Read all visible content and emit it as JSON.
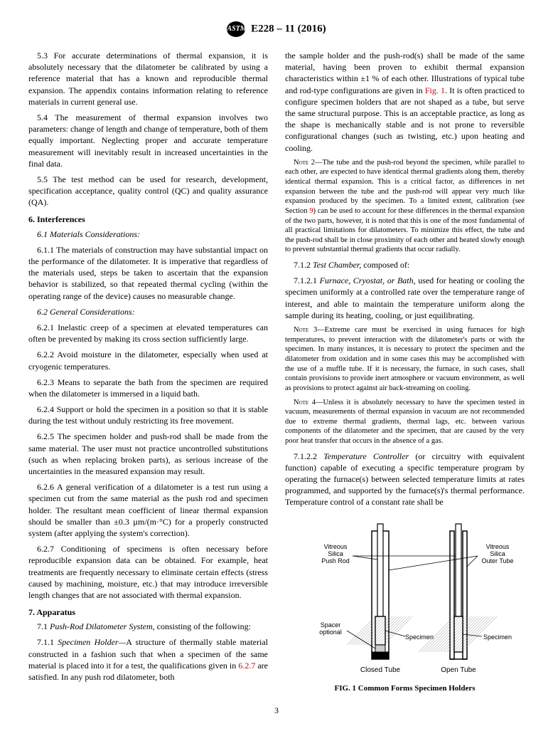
{
  "header": {
    "logo_text": "ASTM",
    "designation": "E228 – 11 (2016)"
  },
  "left": {
    "p53": "5.3 For accurate determinations of thermal expansion, it is absolutely necessary that the dilatometer be calibrated by using a reference material that has a known and reproducible thermal expansion. The appendix contains information relating to reference materials in current general use.",
    "p54": "5.4 The measurement of thermal expansion involves two parameters: change of length and change of temperature, both of them equally important. Neglecting proper and accurate temperature measurement will inevitably result in increased uncertainties in the final data.",
    "p55": "5.5 The test method can be used for research, development, specification acceptance, quality control (QC) and quality assurance (QA).",
    "s6": "6. Interferences",
    "s61": "6.1 Materials Considerations:",
    "p611": "6.1.1 The materials of construction may have substantial impact on the performance of the dilatometer. It is imperative that regardless of the materials used, steps be taken to ascertain that the expansion behavior is stabilized, so that repeated thermal cycling (within the operating range of the device) causes no measurable change.",
    "s62": "6.2 General Considerations:",
    "p621": "6.2.1 Inelastic creep of a specimen at elevated temperatures can often be prevented by making its cross section sufficiently large.",
    "p622": "6.2.2 Avoid moisture in the dilatometer, especially when used at cryogenic temperatures.",
    "p623": "6.2.3 Means to separate the bath from the specimen are required when the dilatometer is immersed in a liquid bath.",
    "p624": "6.2.4 Support or hold the specimen in a position so that it is stable during the test without unduly restricting its free movement.",
    "p625": "6.2.5 The specimen holder and push-rod shall be made from the same material. The user must not practice uncontrolled substitutions (such as when replacing broken parts), as serious increase of the uncertainties in the measured expansion may result.",
    "p626": "6.2.6 A general verification of a dilatometer is a test run using a specimen cut from the same material as the push rod and specimen holder. The resultant mean coefficient of linear thermal expansion should be smaller than ±0.3 µm/(m·°C) for a properly constructed system (after applying the system's correction).",
    "p627": "6.2.7 Conditioning of specimens is often necessary before reproducible expansion data can be obtained. For example, heat treatments are frequently necessary to eliminate certain effects (stress caused by machining, moisture, etc.) that may introduce irreversible length changes that are not associated with thermal expansion.",
    "s7": "7. Apparatus",
    "p71_prefix": "7.1 ",
    "p71_em": "Push-Rod Dilatometer System,",
    "p71_rest": " consisting of the following:",
    "p711_prefix": "7.1.1 ",
    "p711_em": "Specimen Holder—",
    "p711_body": "A structure of thermally stable material constructed in a fashion such that when a specimen of the same material is placed into it for a test, the qualifications given in ",
    "p711_link": "6.2.7",
    "p711_rest": " are satisfied. In any push rod dilatometer, both"
  },
  "right": {
    "p_cont_a": "the sample holder and the push-rod(s) shall be made of the same material, having been proven to exhibit thermal expansion characteristics within ±1 % of each other. Illustrations of typical tube and rod-type configurations are given in ",
    "p_cont_link": "Fig. 1",
    "p_cont_b": ". It is often practiced to configure specimen holders that are not shaped as a tube, but serve the same structural purpose. This is an acceptable practice, as long as the shape is mechanically stable and is not prone to reversible configurational changes (such as twisting, etc.) upon heating and cooling.",
    "note2_label": "Note 2—",
    "note2_a": "The tube and the push-rod beyond the specimen, while parallel to each other, are expected to have identical thermal gradients along them, thereby identical thermal expansion. This is a critical factor, as differences in net expansion between the tube and the push-rod will appear very much like expansion produced by the specimen. To a limited extent, calibration (see Section ",
    "note2_link": "9",
    "note2_b": ") can be used to account for these differences in the thermal expansion of the two parts, however, it is noted that this is one of the most fundamental of all practical limitations for dilatometers. To minimize this effect, the tube and the push-rod shall be in close proximity of each other and heated slowly enough to prevent substantial thermal gradients that occur radially.",
    "p712_prefix": "7.1.2 ",
    "p712_em": "Test Chamber,",
    "p712_rest": " composed of:",
    "p7121_prefix": "7.1.2.1 ",
    "p7121_em": "Furnace, Cryostat, or Bath,",
    "p7121_rest": " used for heating or cooling the specimen uniformly at a controlled rate over the temperature range of interest, and able to maintain the temperature uniform along the sample during its heating, cooling, or just equilibrating.",
    "note3_label": "Note 3—",
    "note3": "Extreme care must be exercised in using furnaces for high temperatures, to prevent interaction with the dilatometer's parts or with the specimen. In many instances, it is necessary to protect the specimen and the dilatometer from oxidation and in some cases this may be accomplished with the use of a muffle tube. If it is necessary, the furnace, in such cases, shall contain provisions to provide inert atmosphere or vacuum environment, as well as provisions to protect against air back-streaming on cooling.",
    "note4_label": "Note 4—",
    "note4": "Unless it is absolutely necessary to have the specimen tested in vacuum, measurements of thermal expansion in vacuum are not recommended due to extreme thermal gradients, thermal lags, etc. between various components of the dilatometer and the specimen, that are caused by the very poor heat transfer that occurs in the absence of a gas.",
    "p7122_prefix": "7.1.2.2 ",
    "p7122_em": "Temperature Controller",
    "p7122_rest": " (or circuitry with equivalent function) capable of executing a specific temperature program by operating the furnace(s) between selected temperature limits at rates programmed, and supported by the furnace(s)'s thermal performance. Temperature control of a constant rate shall be"
  },
  "figure": {
    "caption": "FIG. 1 Common Forms Specimen Holders",
    "labels": {
      "pushrod": "Vitreous Silica Push Rod",
      "outertube": "Vitreous Silica Outer Tube",
      "spacer": "Spacer optional",
      "specimen": "Specimen",
      "closed": "Closed Tube",
      "open": "Open Tube"
    },
    "colors": {
      "stroke": "#000000",
      "fill_hatch": "#888888",
      "fill_spec": "#cccccc",
      "text": "#000000"
    }
  },
  "pagenum": "3"
}
